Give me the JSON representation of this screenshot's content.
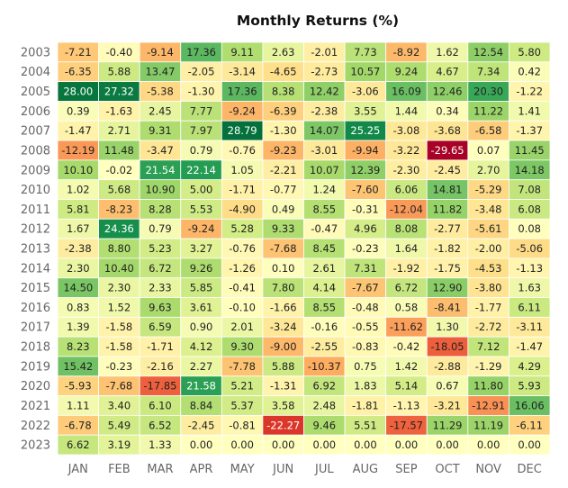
{
  "chart_data": {
    "type": "heatmap",
    "title": "Monthly Returns (%)",
    "xlabel": "",
    "ylabel": "",
    "colormap": "RdYlGn",
    "grid": false,
    "legend": "none",
    "x": [
      "JAN",
      "FEB",
      "MAR",
      "APR",
      "MAY",
      "JUN",
      "JUL",
      "AUG",
      "SEP",
      "OCT",
      "NOV",
      "DEC"
    ],
    "y": [
      "2003",
      "2004",
      "2005",
      "2006",
      "2007",
      "2008",
      "2009",
      "2010",
      "2011",
      "2012",
      "2013",
      "2014",
      "2015",
      "2016",
      "2017",
      "2018",
      "2019",
      "2020",
      "2021",
      "2022",
      "2023"
    ],
    "values": [
      [
        -7.21,
        -0.4,
        -9.14,
        17.36,
        9.11,
        2.63,
        -2.01,
        7.73,
        -8.92,
        1.62,
        12.54,
        5.8
      ],
      [
        -6.35,
        5.88,
        13.47,
        -2.05,
        -3.14,
        -4.65,
        -2.73,
        10.57,
        9.24,
        4.67,
        7.34,
        0.42
      ],
      [
        28.0,
        27.32,
        -5.38,
        -1.3,
        17.36,
        8.38,
        12.42,
        -3.06,
        16.09,
        12.46,
        20.3,
        -1.22
      ],
      [
        0.39,
        -1.63,
        2.45,
        7.77,
        -9.24,
        -6.39,
        -2.38,
        3.55,
        1.44,
        0.34,
        11.22,
        1.41
      ],
      [
        -1.47,
        2.71,
        9.31,
        7.97,
        28.79,
        -1.3,
        14.07,
        25.25,
        -3.08,
        -3.68,
        -6.58,
        -1.37
      ],
      [
        -12.19,
        11.48,
        -3.47,
        0.79,
        -0.76,
        -9.23,
        -3.01,
        -9.94,
        -3.22,
        -29.65,
        0.07,
        11.45
      ],
      [
        10.1,
        -0.02,
        21.54,
        22.14,
        1.05,
        -2.21,
        10.07,
        12.39,
        -2.3,
        -2.45,
        2.7,
        14.18
      ],
      [
        1.02,
        5.68,
        10.9,
        5.0,
        -1.71,
        -0.77,
        1.24,
        -7.6,
        6.06,
        14.81,
        -5.29,
        7.08
      ],
      [
        5.81,
        -8.23,
        8.28,
        5.53,
        -4.9,
        0.49,
        8.55,
        -0.31,
        -12.04,
        11.82,
        -3.48,
        6.08
      ],
      [
        1.67,
        24.36,
        0.79,
        -9.24,
        5.28,
        9.33,
        -0.47,
        4.96,
        8.08,
        -2.77,
        -5.61,
        0.08
      ],
      [
        -2.38,
        8.8,
        5.23,
        3.27,
        -0.76,
        -7.68,
        8.45,
        -0.23,
        1.64,
        -1.82,
        -2.0,
        -5.06
      ],
      [
        2.3,
        10.4,
        6.72,
        9.26,
        -1.26,
        0.1,
        2.61,
        7.31,
        -1.92,
        -1.75,
        -4.53,
        -1.13
      ],
      [
        14.5,
        2.3,
        2.33,
        5.85,
        -0.41,
        7.8,
        4.14,
        -7.67,
        6.72,
        12.9,
        -3.8,
        1.63
      ],
      [
        0.83,
        1.52,
        9.63,
        3.61,
        -0.1,
        -1.66,
        8.55,
        -0.48,
        0.58,
        -8.41,
        -1.77,
        6.11
      ],
      [
        1.39,
        -1.58,
        6.59,
        0.9,
        2.01,
        -3.24,
        -0.16,
        -0.55,
        -11.62,
        1.3,
        -2.72,
        -3.11
      ],
      [
        8.23,
        -1.58,
        -1.71,
        4.12,
        9.3,
        -9.0,
        -2.55,
        -0.83,
        -0.42,
        -18.05,
        7.12,
        -1.47
      ],
      [
        15.42,
        -0.23,
        -2.16,
        2.27,
        -7.78,
        5.88,
        -10.37,
        0.75,
        1.42,
        -2.88,
        -1.29,
        4.29
      ],
      [
        -5.93,
        -7.68,
        -17.85,
        21.58,
        5.21,
        -1.31,
        6.92,
        1.83,
        5.14,
        0.67,
        11.8,
        5.93
      ],
      [
        1.11,
        3.4,
        6.1,
        8.84,
        5.37,
        3.58,
        2.48,
        -1.81,
        -1.13,
        -3.21,
        -12.91,
        16.06
      ],
      [
        -6.78,
        5.49,
        6.52,
        -2.45,
        -0.81,
        -22.27,
        9.46,
        5.51,
        -17.57,
        11.29,
        11.19,
        -6.11
      ],
      [
        6.62,
        3.19,
        1.33,
        0.0,
        0.0,
        0.0,
        0.0,
        0.0,
        0.0,
        0.0,
        0.0,
        0.0
      ]
    ]
  }
}
